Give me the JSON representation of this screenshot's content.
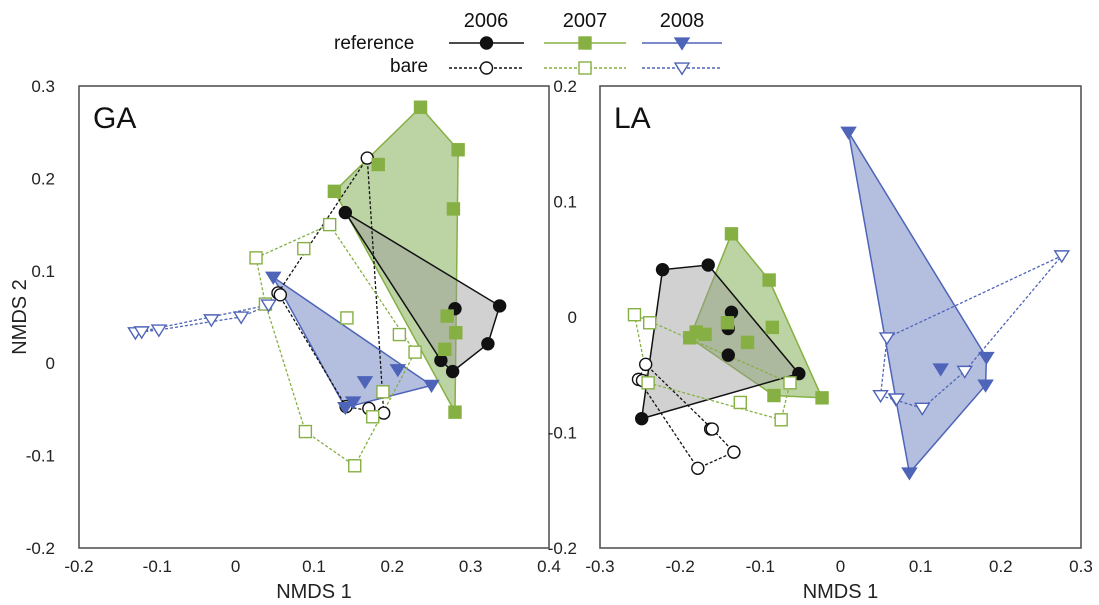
{
  "legend": {
    "years": [
      "2006",
      "2007",
      "2008"
    ],
    "rows": [
      "reference",
      "bare"
    ]
  },
  "colors": {
    "2006": "#111111",
    "2007": "#86b043",
    "2008": "#4e64b8",
    "fill_2006": "#9a9a9a",
    "fill_2007": "#7aa84a",
    "fill_2008": "#6a80c0"
  },
  "chart_data": [
    {
      "type": "scatter",
      "title": "GA",
      "xlabel": "NMDS 1",
      "ylabel": "NMDS 2",
      "xlim": [
        -0.2,
        0.4
      ],
      "ylim": [
        -0.2,
        0.3
      ],
      "xticks": [
        "-0.2",
        "-0.1",
        "0",
        "0.1",
        "0.2",
        "0.3",
        "0.4"
      ],
      "yticks": [
        "-0.2",
        "-0.1",
        "0",
        "0.1",
        "0.2",
        "0.3"
      ],
      "series": [
        {
          "name": "reference 2006",
          "year": "2006",
          "group": "reference",
          "points": [
            [
              0.14,
              0.163
            ],
            [
              0.262,
              0.003
            ],
            [
              0.277,
              -0.009
            ],
            [
              0.322,
              0.021
            ],
            [
              0.337,
              0.062
            ],
            [
              0.28,
              0.059
            ]
          ]
        },
        {
          "name": "bare 2006",
          "year": "2006",
          "group": "bare",
          "points": [
            [
              0.168,
              0.222
            ],
            [
              0.054,
              0.076
            ],
            [
              0.057,
              0.074
            ],
            [
              0.141,
              -0.047
            ],
            [
              0.17,
              -0.049
            ],
            [
              0.189,
              -0.054
            ]
          ]
        },
        {
          "name": "reference 2007",
          "year": "2007",
          "group": "reference",
          "points": [
            [
              0.236,
              0.277
            ],
            [
              0.284,
              0.231
            ],
            [
              0.182,
              0.215
            ],
            [
              0.126,
              0.186
            ],
            [
              0.278,
              0.167
            ],
            [
              0.27,
              0.051
            ],
            [
              0.281,
              0.033
            ],
            [
              0.267,
              0.015
            ],
            [
              0.28,
              -0.053
            ]
          ]
        },
        {
          "name": "bare 2007",
          "year": "2007",
          "group": "bare",
          "points": [
            [
              0.026,
              0.114
            ],
            [
              0.12,
              0.15
            ],
            [
              0.087,
              0.124
            ],
            [
              0.038,
              0.064
            ],
            [
              0.142,
              0.049
            ],
            [
              0.209,
              0.031
            ],
            [
              0.229,
              0.012
            ],
            [
              0.188,
              -0.031
            ],
            [
              0.175,
              -0.058
            ],
            [
              0.152,
              -0.111
            ],
            [
              0.089,
              -0.074
            ]
          ]
        },
        {
          "name": "reference 2008",
          "year": "2008",
          "group": "reference",
          "points": [
            [
              0.048,
              0.093
            ],
            [
              0.25,
              -0.024
            ],
            [
              0.207,
              -0.007
            ],
            [
              0.165,
              -0.02
            ],
            [
              0.15,
              -0.042
            ],
            [
              0.14,
              -0.048
            ]
          ]
        },
        {
          "name": "bare 2008",
          "year": "2008",
          "group": "bare",
          "points": [
            [
              -0.128,
              0.033
            ],
            [
              -0.12,
              0.034
            ],
            [
              -0.098,
              0.036
            ],
            [
              -0.031,
              0.047
            ],
            [
              0.007,
              0.05
            ],
            [
              0.042,
              0.063
            ]
          ]
        }
      ]
    },
    {
      "type": "scatter",
      "title": "LA",
      "xlabel": "NMDS 1",
      "ylabel": "",
      "xlim": [
        -0.3,
        0.3
      ],
      "ylim": [
        -0.2,
        0.2
      ],
      "xticks": [
        "-0.3",
        "-0.2",
        "-0.1",
        "0",
        "0.1",
        "0.2",
        "0.3"
      ],
      "yticks": [
        "-0.2",
        "-0.1",
        "0",
        "0.1",
        "0.2"
      ],
      "series": [
        {
          "name": "reference 2006",
          "year": "2006",
          "group": "reference",
          "points": [
            [
              -0.222,
              0.041
            ],
            [
              -0.165,
              0.045
            ],
            [
              -0.136,
              0.004
            ],
            [
              -0.14,
              -0.01
            ],
            [
              -0.14,
              -0.033
            ],
            [
              -0.052,
              -0.049
            ],
            [
              -0.248,
              -0.088
            ]
          ]
        },
        {
          "name": "bare 2006",
          "year": "2006",
          "group": "bare",
          "points": [
            [
              -0.243,
              -0.041
            ],
            [
              -0.252,
              -0.054
            ],
            [
              -0.247,
              -0.055
            ],
            [
              -0.162,
              -0.097
            ],
            [
              -0.16,
              -0.097
            ],
            [
              -0.133,
              -0.117
            ],
            [
              -0.178,
              -0.131
            ]
          ]
        },
        {
          "name": "reference 2007",
          "year": "2007",
          "group": "reference",
          "points": [
            [
              -0.136,
              0.072
            ],
            [
              -0.089,
              0.032
            ],
            [
              -0.141,
              -0.005
            ],
            [
              -0.116,
              -0.022
            ],
            [
              -0.18,
              -0.013
            ],
            [
              -0.188,
              -0.018
            ],
            [
              -0.169,
              -0.015
            ],
            [
              -0.085,
              -0.009
            ],
            [
              -0.083,
              -0.068
            ],
            [
              -0.023,
              -0.07
            ]
          ]
        },
        {
          "name": "bare 2007",
          "year": "2007",
          "group": "bare",
          "points": [
            [
              -0.257,
              0.002
            ],
            [
              -0.238,
              -0.005
            ],
            [
              -0.063,
              -0.057
            ],
            [
              -0.074,
              -0.089
            ],
            [
              -0.125,
              -0.074
            ],
            [
              -0.24,
              -0.057
            ]
          ]
        },
        {
          "name": "reference 2008",
          "year": "2008",
          "group": "reference",
          "points": [
            [
              0.01,
              0.16
            ],
            [
              0.086,
              -0.135
            ],
            [
              0.181,
              -0.059
            ],
            [
              0.182,
              -0.035
            ],
            [
              0.125,
              -0.045
            ],
            [
              0.069,
              -0.071
            ]
          ]
        },
        {
          "name": "bare 2008",
          "year": "2008",
          "group": "bare",
          "points": [
            [
              0.276,
              0.053
            ],
            [
              0.058,
              -0.018
            ],
            [
              0.05,
              -0.068
            ],
            [
              0.07,
              -0.071
            ],
            [
              0.102,
              -0.079
            ],
            [
              0.155,
              -0.047
            ]
          ]
        }
      ]
    }
  ]
}
